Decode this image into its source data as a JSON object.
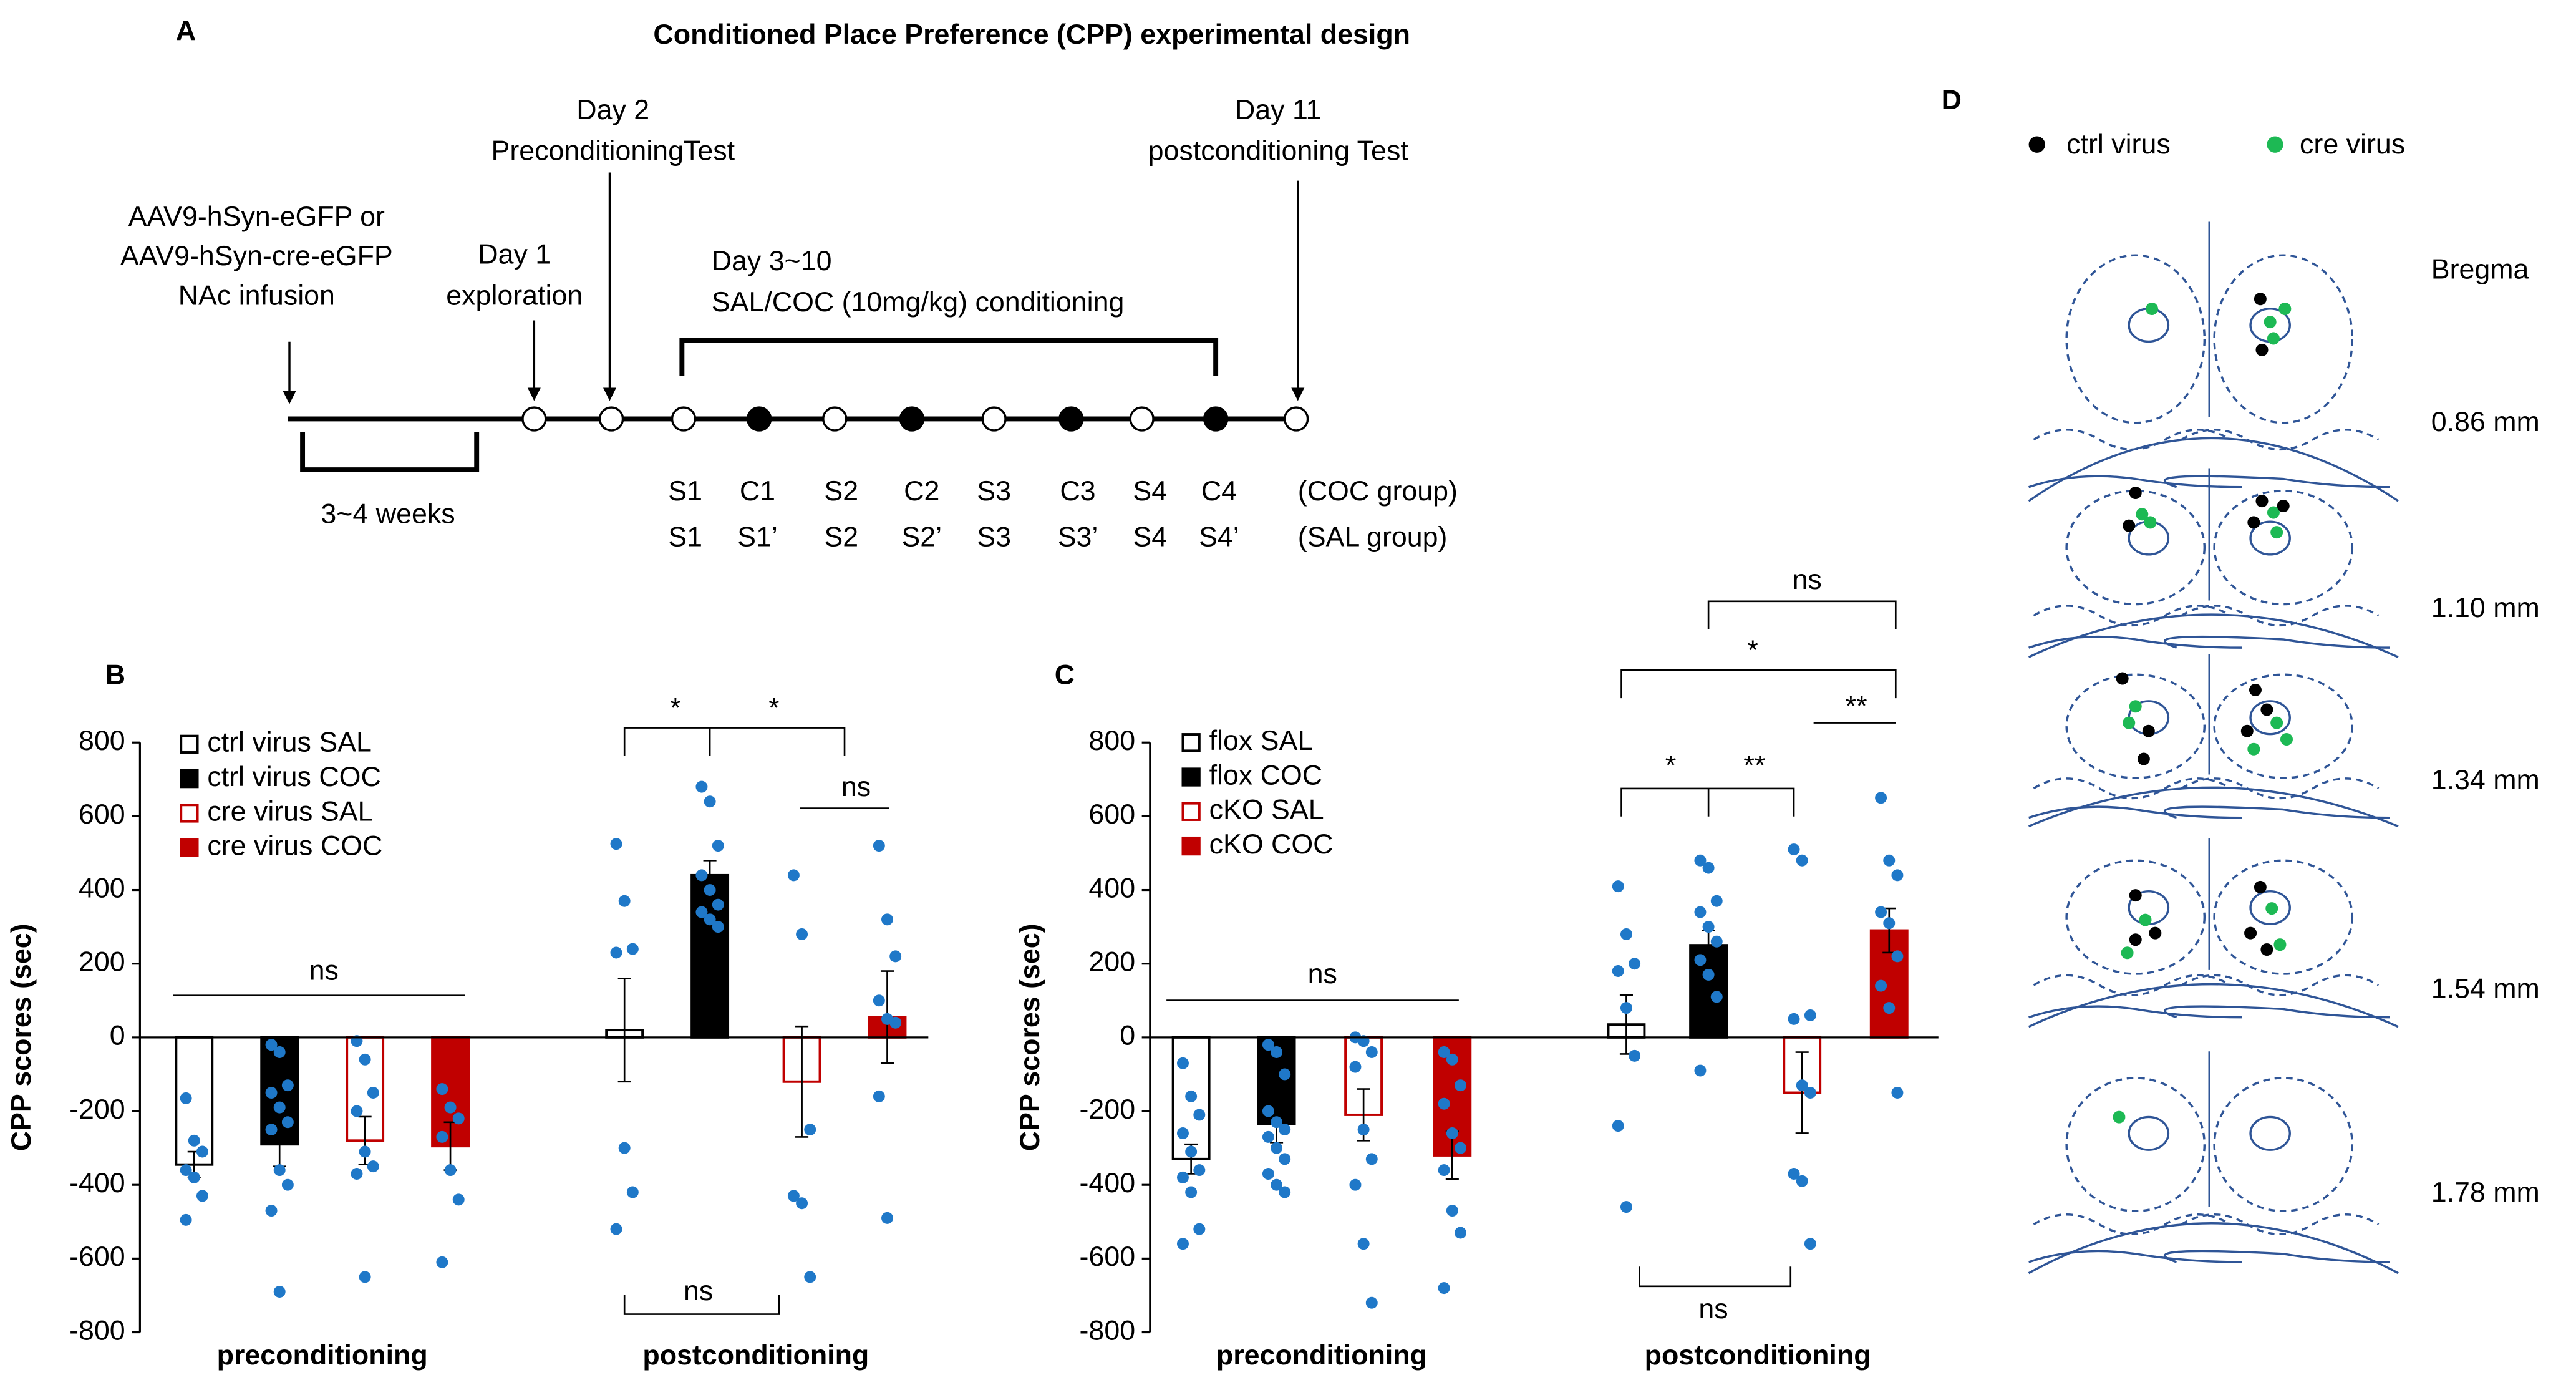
{
  "timeline": {
    "label": "A",
    "title": "Conditioned Place Preference (CPP) experimental design",
    "notes": [
      "Day 2",
      "PreconditioningTest",
      "Day 11",
      "postconditioning Test",
      "AAV9-hSyn-eGFP or",
      "AAV9-hSyn-cre-eGFP",
      "NAc infusion",
      "Day 1",
      "exploration",
      "Day 3~10",
      "SAL/COC (10mg/kg) conditioning",
      "3~4 weeks"
    ],
    "coc_row": [
      "S1",
      "C1",
      "S2",
      "C2",
      "S3",
      "C3",
      "S4",
      "C4"
    ],
    "coc_group": "(COC group)",
    "sal_row": [
      "S1",
      "S1’",
      "S2",
      "S2’",
      "S3",
      "S3’",
      "S4",
      "S4’"
    ],
    "sal_group": "(SAL group)"
  },
  "chart_data": [
    {
      "type": "bar",
      "panel": "B",
      "ylabel": "CPP scores (sec)",
      "categories": [
        "preconditioning",
        "postconditioning"
      ],
      "ylim": [
        -800,
        800
      ],
      "yticks": [
        -800,
        -600,
        -400,
        -200,
        0,
        200,
        400,
        600,
        800
      ],
      "point_color": "#1f78c8",
      "series": [
        {
          "name": "ctrl virus SAL",
          "color": "#000000",
          "fill": "#ffffff",
          "values": [
            -345,
            20
          ],
          "errors": [
            35,
            140
          ],
          "points": [
            [
              -165,
              -280,
              -310,
              -360,
              -380,
              -430,
              -495
            ],
            [
              525,
              370,
              240,
              230,
              -300,
              -420,
              -520
            ]
          ]
        },
        {
          "name": "ctrl virus COC",
          "color": "#000000",
          "fill": "#000000",
          "values": [
            -290,
            440
          ],
          "errors": [
            60,
            40
          ],
          "points": [
            [
              -20,
              -40,
              -130,
              -150,
              -190,
              -230,
              -250,
              -360,
              -400,
              -470,
              -690
            ],
            [
              680,
              640,
              520,
              440,
              400,
              360,
              340,
              320,
              300
            ]
          ]
        },
        {
          "name": "cre virus SAL",
          "color": "#c00000",
          "fill": "#ffffff",
          "values": [
            -280,
            -120
          ],
          "errors": [
            65,
            150
          ],
          "points": [
            [
              -10,
              -60,
              -150,
              -200,
              -310,
              -350,
              -370,
              -650
            ],
            [
              440,
              280,
              -250,
              -430,
              -450,
              -650
            ]
          ]
        },
        {
          "name": "cre virus COC",
          "color": "#c00000",
          "fill": "#c00000",
          "values": [
            -295,
            55
          ],
          "errors": [
            65,
            125
          ],
          "points": [
            [
              -140,
              -190,
              -220,
              -270,
              -360,
              -440,
              -610
            ],
            [
              520,
              320,
              220,
              100,
              50,
              40,
              -160,
              -490
            ]
          ]
        }
      ],
      "annotations": [
        "*",
        "*",
        "ns",
        "ns",
        "ns"
      ]
    },
    {
      "type": "bar",
      "panel": "C",
      "ylabel": "CPP scores (sec)",
      "categories": [
        "preconditioning",
        "postconditioning"
      ],
      "ylim": [
        -800,
        800
      ],
      "yticks": [
        -800,
        -600,
        -400,
        -200,
        0,
        200,
        400,
        600,
        800
      ],
      "point_color": "#1f78c8",
      "series": [
        {
          "name": "flox SAL",
          "color": "#000000",
          "fill": "#ffffff",
          "values": [
            -330,
            35
          ],
          "errors": [
            40,
            80
          ],
          "points": [
            [
              -70,
              -160,
              -210,
              -260,
              -310,
              -360,
              -380,
              -420,
              -520,
              -560
            ],
            [
              410,
              280,
              200,
              180,
              80,
              -50,
              -240,
              -460
            ]
          ]
        },
        {
          "name": "flox COC",
          "color": "#000000",
          "fill": "#000000",
          "values": [
            -235,
            250
          ],
          "errors": [
            50,
            40
          ],
          "points": [
            [
              -20,
              -40,
              -100,
              -200,
              -230,
              -250,
              -270,
              -300,
              -330,
              -370,
              -400,
              -420
            ],
            [
              480,
              460,
              370,
              340,
              300,
              260,
              210,
              170,
              110,
              -90
            ]
          ]
        },
        {
          "name": "cKO SAL",
          "color": "#c00000",
          "fill": "#ffffff",
          "values": [
            -210,
            -150
          ],
          "errors": [
            70,
            110
          ],
          "points": [
            [
              0,
              -10,
              -40,
              -80,
              -250,
              -330,
              -400,
              -560,
              -720
            ],
            [
              510,
              480,
              60,
              50,
              -130,
              -150,
              -370,
              -390,
              -560
            ]
          ]
        },
        {
          "name": "cKO COC",
          "color": "#c00000",
          "fill": "#c00000",
          "values": [
            -320,
            290
          ],
          "errors": [
            65,
            60
          ],
          "points": [
            [
              -40,
              -60,
              -130,
              -180,
              -260,
              -300,
              -360,
              -470,
              -530,
              -680
            ],
            [
              650,
              480,
              440,
              340,
              310,
              220,
              140,
              80,
              -150
            ]
          ]
        }
      ],
      "annotations": [
        "ns",
        "*",
        "**",
        "*",
        "**",
        "ns",
        "ns"
      ]
    }
  ],
  "placement": {
    "label": "D",
    "legend": [
      "ctrl virus",
      "cre virus"
    ],
    "bregma": "Bregma",
    "levels": [
      "0.86 mm",
      "1.10 mm",
      "1.34 mm",
      "1.54 mm",
      "1.78 mm"
    ]
  }
}
